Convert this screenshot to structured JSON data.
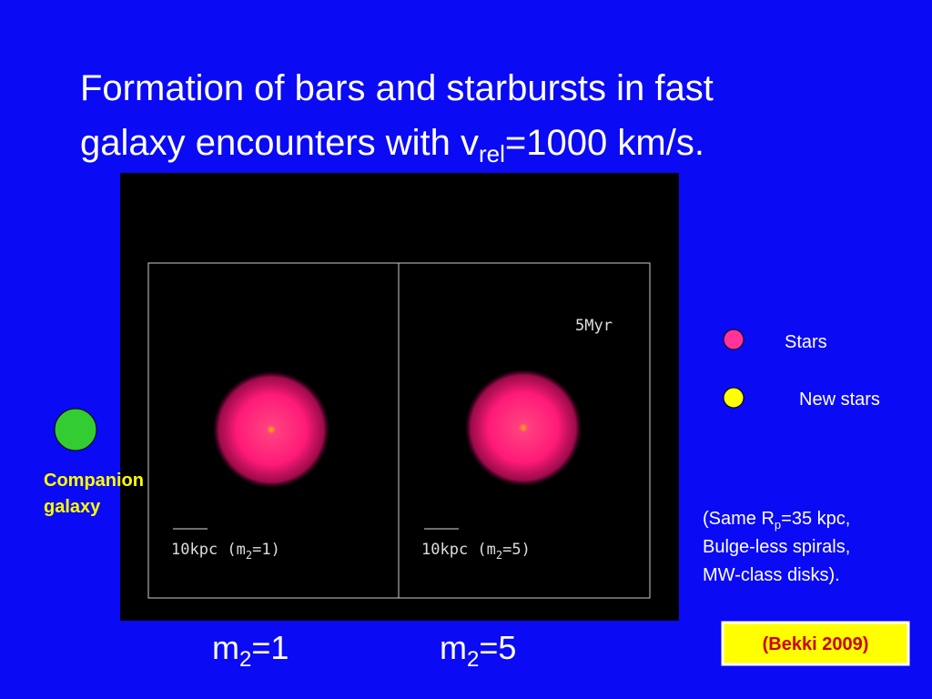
{
  "title": {
    "line1": "Formation of bars and  starbursts in fast",
    "line2_main": "galaxy encounters  with v",
    "line2_sub": "rel",
    "line2_end": "=1000 km/s."
  },
  "simulation": {
    "time": "5Myr",
    "left_scale": {
      "main": "10kpc (m",
      "sub": "2",
      "end": "=1)"
    },
    "right_scale": {
      "main": "10kpc (m",
      "sub": "2",
      "end": "=5)"
    }
  },
  "panel_labels": [
    {
      "main": "m",
      "sub": "2",
      "end": "=1"
    },
    {
      "main": "m",
      "sub": "2",
      "end": "=5"
    }
  ],
  "legend": {
    "stars": "Stars",
    "new_stars": "New stars"
  },
  "companion": {
    "line1": "Companion",
    "line2": "galaxy"
  },
  "note": {
    "line1_main": "(Same R",
    "line1_sub": "p",
    "line1_end": "=35 kpc,",
    "line2": "Bulge-less spirals,",
    "line3": "MW-class disks)."
  },
  "citation": "(Bekki 2009)"
}
